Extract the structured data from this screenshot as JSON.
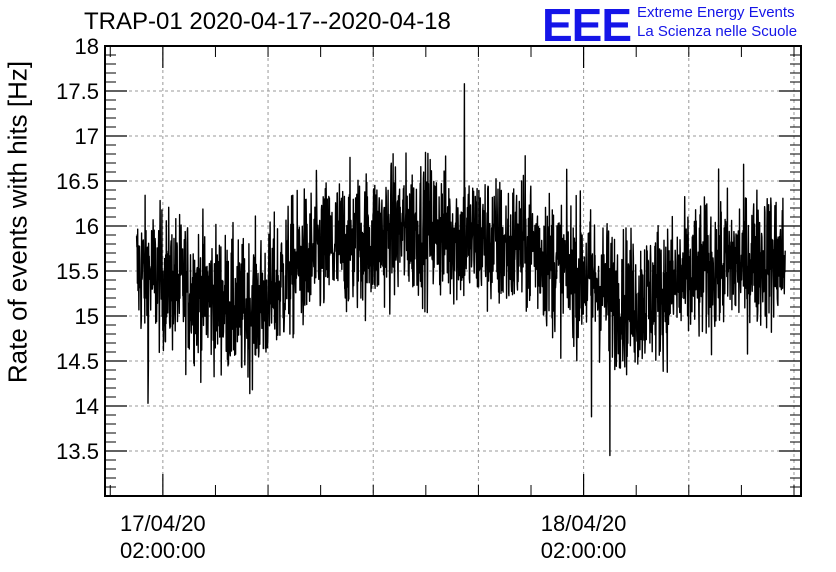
{
  "chart_data": {
    "type": "line",
    "title": "TRAP-01 2020-04-17--2020-04-18",
    "xlabel": "",
    "ylabel": "Rate of events with hits [Hz]",
    "ylim": [
      13,
      18
    ],
    "y_ticks": [
      "13.5",
      "14",
      "14.5",
      "15",
      "15.5",
      "16",
      "16.5",
      "17",
      "17.5",
      "18"
    ],
    "x_tick_labels": [
      {
        "date": "17/04/20",
        "time": "02:00:00"
      },
      {
        "date": "18/04/20",
        "time": "02:00:00"
      }
    ],
    "xlim_hours_from_first_label": [
      -3.3,
      36.4
    ],
    "data_range_hours_from_first_label": [
      -1.5,
      35.5
    ],
    "grid": true,
    "line_color": "#000000",
    "series": [
      {
        "trend_x_hours_from_first_label": [
          -1.5,
          0,
          1.5,
          3,
          4.5,
          6,
          7.5,
          9,
          10.5,
          12,
          13.5,
          15,
          16.5,
          18,
          19.5,
          21,
          22.5,
          24,
          25.5,
          27,
          28.5,
          30,
          31.5,
          33,
          34.5,
          35.5
        ],
        "trend_y": [
          15.5,
          15.4,
          15.3,
          15.2,
          15.05,
          15.2,
          15.55,
          15.7,
          15.8,
          15.85,
          15.95,
          16.0,
          15.9,
          15.85,
          15.75,
          15.8,
          15.55,
          15.45,
          15.25,
          15.15,
          15.3,
          15.4,
          15.55,
          15.6,
          15.65,
          15.6
        ],
        "noise_amplitude": 0.38,
        "notable_points": [
          {
            "x": -0.85,
            "y": 14.03
          },
          {
            "x": 24.45,
            "y": 13.88
          },
          {
            "x": 25.5,
            "y": 13.45
          },
          {
            "x": 17.2,
            "y": 17.58
          }
        ]
      }
    ]
  },
  "logo": {
    "mark": "EEE",
    "line1": "Extreme Energy Events",
    "line2": "La Scienza nelle Scuole"
  }
}
